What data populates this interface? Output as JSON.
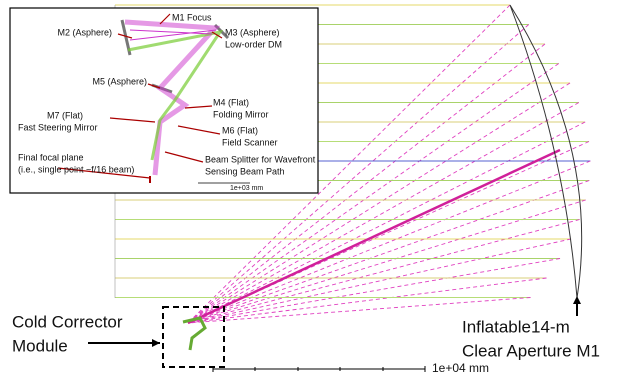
{
  "inset": {
    "labels": [
      {
        "lines": [
          "M1 Focus"
        ]
      },
      {
        "lines": [
          "M2 (Asphere)"
        ]
      },
      {
        "lines": [
          "M3 (Asphere)",
          "Low-order DM"
        ]
      },
      {
        "lines": [
          "M5 (Asphere)"
        ]
      },
      {
        "lines": [
          "M4 (Flat)",
          "Folding Mirror"
        ]
      },
      {
        "lines": [
          "M7 (Flat)",
          "Fast Steering Mirror"
        ]
      },
      {
        "lines": [
          "M6 (Flat)",
          "Field Scanner"
        ]
      },
      {
        "lines": [
          "Final focal plane",
          "(i.e., single point ~f/16 beam)"
        ]
      },
      {
        "lines": [
          "Beam Splitter for Wavefront",
          "Sensing Beam Path"
        ]
      }
    ],
    "scale": "1e+03 mm"
  },
  "main": {
    "labels": [
      {
        "lines": [
          "Cold Corrector",
          "Module"
        ]
      },
      {
        "lines": [
          "Inflatable14-m",
          "Clear Aperture M1"
        ]
      }
    ],
    "scale": "1e+04 mm"
  }
}
